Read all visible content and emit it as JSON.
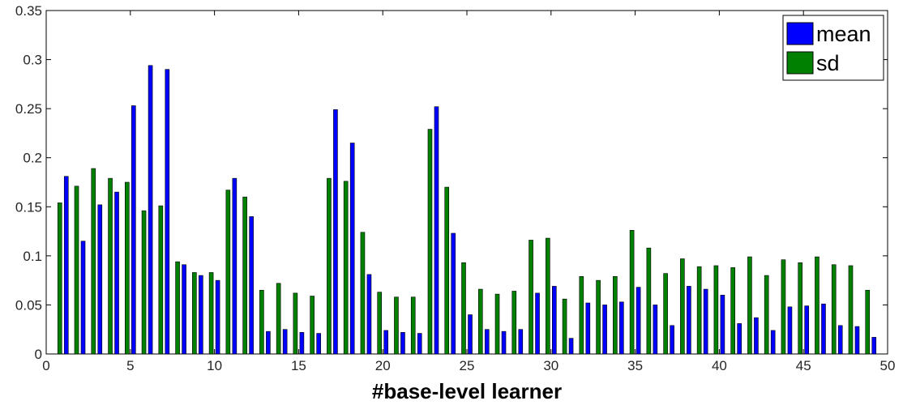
{
  "chart_data": {
    "type": "bar",
    "xlabel": "#base-level learner",
    "ylabel": "",
    "xlim": [
      0,
      50
    ],
    "ylim": [
      0,
      0.35
    ],
    "xticks": [
      0,
      5,
      10,
      15,
      20,
      25,
      30,
      35,
      40,
      45,
      50
    ],
    "xtick_labels": [
      "0",
      "5",
      "10",
      "15",
      "20",
      "25",
      "30",
      "35",
      "40",
      "45",
      "50"
    ],
    "yticks": [
      0,
      0.05,
      0.1,
      0.15,
      0.2,
      0.25,
      0.3,
      0.35
    ],
    "ytick_labels": [
      "0",
      "0.05",
      "0.1",
      "0.15",
      "0.2",
      "0.25",
      "0.3",
      "0.35"
    ],
    "grid": false,
    "legend_position": "top-right",
    "x": [
      1,
      2,
      3,
      4,
      5,
      6,
      7,
      8,
      9,
      10,
      11,
      12,
      13,
      14,
      15,
      16,
      17,
      18,
      19,
      20,
      21,
      22,
      23,
      24,
      25,
      26,
      27,
      28,
      29,
      30,
      31,
      32,
      33,
      34,
      35,
      36,
      37,
      38,
      39,
      40,
      41,
      42,
      43,
      44,
      45,
      46,
      47,
      48,
      49
    ],
    "series": [
      {
        "name": "mean",
        "color": "#0000ff",
        "values": [
          0.181,
          0.115,
          0.152,
          0.165,
          0.253,
          0.294,
          0.29,
          0.091,
          0.08,
          0.075,
          0.179,
          0.14,
          0.023,
          0.025,
          0.022,
          0.021,
          0.249,
          0.215,
          0.081,
          0.024,
          0.022,
          0.021,
          0.252,
          0.123,
          0.04,
          0.025,
          0.023,
          0.025,
          0.062,
          0.069,
          0.016,
          0.052,
          0.05,
          0.053,
          0.068,
          0.05,
          0.029,
          0.069,
          0.066,
          0.06,
          0.031,
          0.037,
          0.024,
          0.048,
          0.049,
          0.051,
          0.029,
          0.028,
          0.017
        ]
      },
      {
        "name": "sd",
        "color": "#008000",
        "values": [
          0.154,
          0.171,
          0.189,
          0.179,
          0.175,
          0.146,
          0.151,
          0.094,
          0.083,
          0.083,
          0.167,
          0.16,
          0.065,
          0.072,
          0.062,
          0.059,
          0.179,
          0.176,
          0.124,
          0.063,
          0.058,
          0.058,
          0.229,
          0.17,
          0.093,
          0.066,
          0.061,
          0.064,
          0.116,
          0.118,
          0.056,
          0.079,
          0.075,
          0.079,
          0.126,
          0.108,
          0.082,
          0.097,
          0.089,
          0.09,
          0.088,
          0.099,
          0.08,
          0.096,
          0.093,
          0.099,
          0.091,
          0.09,
          0.065
        ]
      }
    ]
  }
}
